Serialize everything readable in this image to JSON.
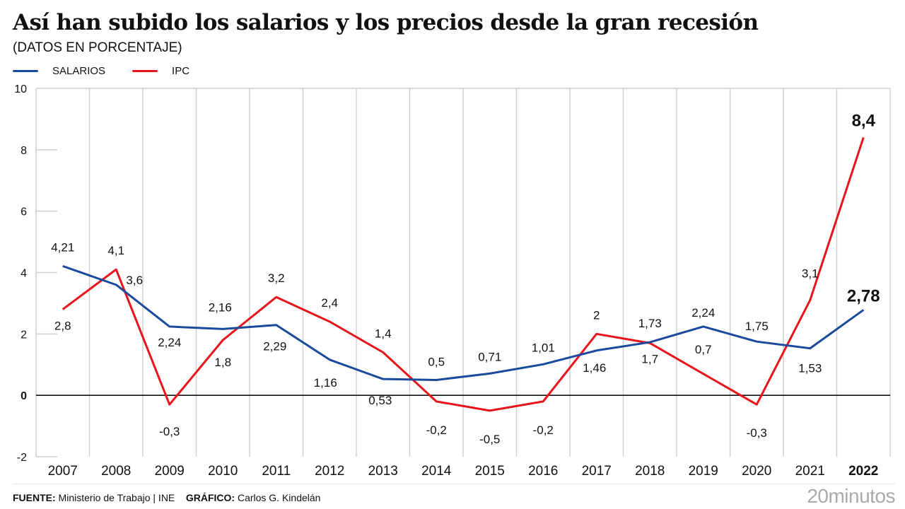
{
  "header": {
    "title": "Así han subido los salarios y los precios desde la gran recesión",
    "subtitle": "(DATOS EN PORCENTAJE)"
  },
  "legend": [
    {
      "label": "SALARIOS",
      "color": "#1a4a9c"
    },
    {
      "label": "IPC",
      "color": "#e8141b"
    }
  ],
  "footer": {
    "source_label": "FUENTE:",
    "source_value": " Ministerio de Trabajo | INE",
    "graphic_label": "GRÁFICO:",
    "graphic_value": " Carlos G. Kindelán",
    "brand": "20minutos"
  },
  "chart_data": {
    "type": "line",
    "title": "Así han subido los salarios y los precios desde la gran recesión",
    "subtitle": "(DATOS EN PORCENTAJE)",
    "xlabel": "",
    "ylabel": "",
    "ylim": [
      -2,
      10
    ],
    "yticks": [
      -2,
      0,
      2,
      4,
      6,
      8,
      10
    ],
    "grid": "vertical",
    "legend_position": "top-left",
    "categories": [
      "2007",
      "2008",
      "2009",
      "2010",
      "2011",
      "2012",
      "2013",
      "2014",
      "2015",
      "2016",
      "2017",
      "2018",
      "2019",
      "2020",
      "2021",
      "2022"
    ],
    "series": [
      {
        "name": "SALARIOS",
        "color": "#1a4a9c",
        "values": [
          4.21,
          3.6,
          2.24,
          2.16,
          2.29,
          1.16,
          0.53,
          0.5,
          0.71,
          1.01,
          1.46,
          1.73,
          2.24,
          1.75,
          1.53,
          2.78
        ],
        "labels": [
          "4,21",
          "3,6",
          "2,24",
          "2,16",
          "2,29",
          "1,16",
          "0,53",
          "0,5",
          "0,71",
          "1,01",
          "1,46",
          "1,73",
          "2,24",
          "1,75",
          "1,53",
          "2,78"
        ]
      },
      {
        "name": "IPC",
        "color": "#e8141b",
        "values": [
          2.8,
          4.1,
          -0.3,
          1.8,
          3.2,
          2.4,
          1.4,
          -0.2,
          -0.5,
          -0.2,
          2.0,
          1.7,
          0.7,
          -0.3,
          3.1,
          8.4
        ],
        "labels": [
          "2,8",
          "4,1",
          "-0,3",
          "1,8",
          "3,2",
          "2,4",
          "1,4",
          "-0,2",
          "-0,5",
          "-0,2",
          "2",
          "1,7",
          "0,7",
          "-0,3",
          "3,1",
          "8,4"
        ]
      }
    ]
  }
}
